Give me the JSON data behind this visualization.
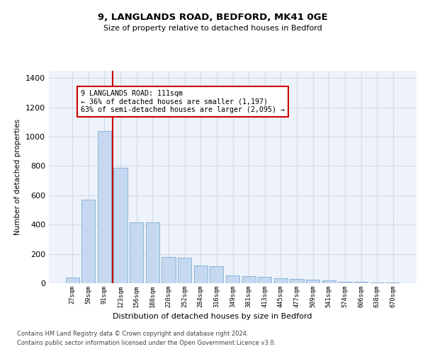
{
  "title": "9, LANGLANDS ROAD, BEDFORD, MK41 0GE",
  "subtitle": "Size of property relative to detached houses in Bedford",
  "xlabel": "Distribution of detached houses by size in Bedford",
  "ylabel": "Number of detached properties",
  "bar_color": "#c5d8f0",
  "bar_edge_color": "#7bafd4",
  "grid_color": "#d0dcea",
  "background_color": "#eef2fa",
  "vline_color": "#cc0000",
  "annotation_text": "9 LANGLANDS ROAD: 111sqm\n← 36% of detached houses are smaller (1,197)\n63% of semi-detached houses are larger (2,095) →",
  "categories": [
    "27sqm",
    "59sqm",
    "91sqm",
    "123sqm",
    "156sqm",
    "188sqm",
    "220sqm",
    "252sqm",
    "284sqm",
    "316sqm",
    "349sqm",
    "381sqm",
    "413sqm",
    "445sqm",
    "477sqm",
    "509sqm",
    "541sqm",
    "574sqm",
    "606sqm",
    "638sqm",
    "670sqm"
  ],
  "values": [
    40,
    570,
    1040,
    790,
    415,
    415,
    180,
    175,
    120,
    115,
    55,
    50,
    45,
    35,
    28,
    22,
    18,
    12,
    8,
    5,
    4
  ],
  "vline_pos": 2.5,
  "ylim": [
    0,
    1450
  ],
  "yticks": [
    0,
    200,
    400,
    600,
    800,
    1000,
    1200,
    1400
  ],
  "footer_line1": "Contains HM Land Registry data © Crown copyright and database right 2024.",
  "footer_line2": "Contains public sector information licensed under the Open Government Licence v3.0."
}
